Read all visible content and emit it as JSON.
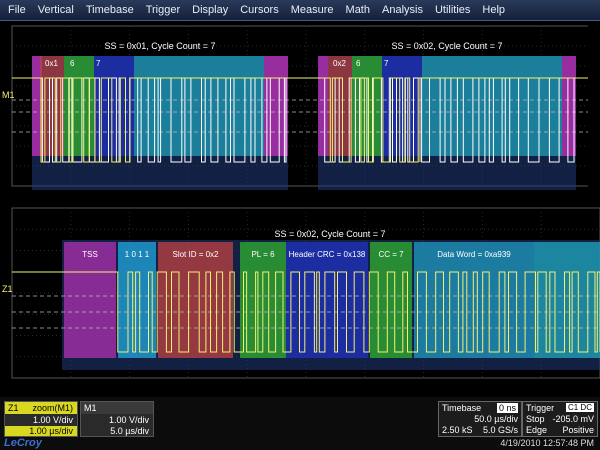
{
  "menu": [
    "File",
    "Vertical",
    "Timebase",
    "Trigger",
    "Display",
    "Cursors",
    "Measure",
    "Math",
    "Analysis",
    "Utilities",
    "Help"
  ],
  "top_panel": {
    "channel_label": "M1",
    "frames": [
      {
        "title": "SS = 0x01, Cycle Count = 7",
        "labels": [
          "0x1",
          "6",
          "7"
        ]
      },
      {
        "title": "SS = 0x02, Cycle Count = 7",
        "labels": [
          "0x2",
          "6",
          "7"
        ]
      }
    ]
  },
  "bottom_panel": {
    "channel_label": "Z1",
    "title": "SS = 0x02, Cycle Count = 7",
    "fields": [
      {
        "label": "TSS",
        "color": "#b030b0"
      },
      {
        "label": "1 0 1 1",
        "color": "#20a8e0"
      },
      {
        "label": "Slot ID = 0x2",
        "color": "#c04040"
      },
      {
        "label": "PL = 6",
        "color": "#30b030"
      },
      {
        "label": "Header CRC = 0x138",
        "color": "#2030c0"
      },
      {
        "label": "CC = 7",
        "color": "#30b030"
      },
      {
        "label": "Data Word = 0xa939",
        "color": "#209ac0"
      }
    ]
  },
  "descriptors": {
    "z1": {
      "label": "Z1",
      "name": "zoom(M1)",
      "vdiv": "1.00 V/div",
      "tdiv": "1.00 µs/div"
    },
    "m1": {
      "label": "M1",
      "vdiv": "1.00 V/div",
      "tdiv": "5.0 µs/div"
    }
  },
  "timebase": {
    "label": "Timebase",
    "delay": "0 ns",
    "tdiv": "50.0 µs/div",
    "samples": "2.50 kS",
    "rate": "5.0 GS/s"
  },
  "trigger": {
    "label": "Trigger",
    "badge": "C1 DC",
    "mode": "Stop",
    "level": "-205.0 mV",
    "type": "Edge",
    "slope": "Positive"
  },
  "brand": "LeCroy",
  "timestamp": "4/19/2010 12:57:48 PM",
  "colors": {
    "trace": "#f5f070",
    "menu_text": "#e8eef8",
    "frame_blue": "#203a7a"
  }
}
